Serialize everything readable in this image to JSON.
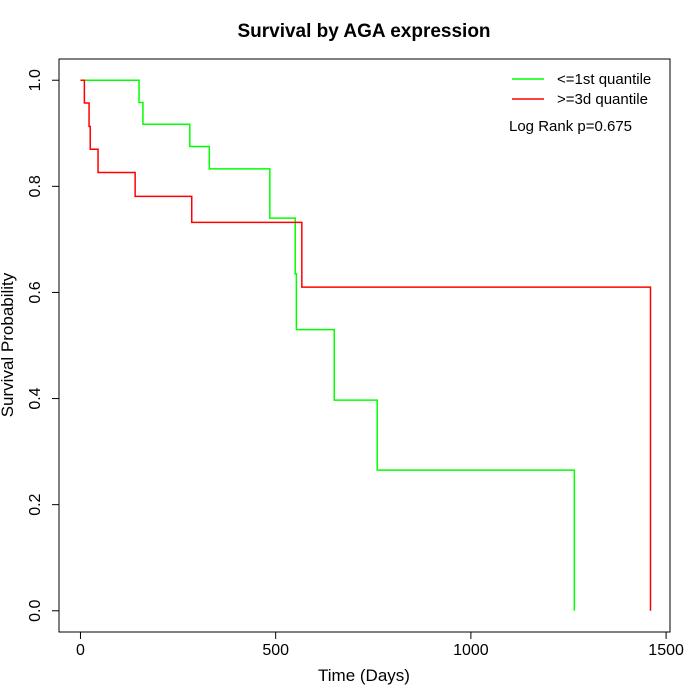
{
  "chart_data": {
    "type": "line",
    "step": true,
    "title": "Survival by AGA expression",
    "xlabel": "Time (Days)",
    "ylabel": "Survival Probability",
    "xlim": [
      -55,
      1510
    ],
    "ylim": [
      -0.04,
      1.04
    ],
    "xticks": [
      0,
      500,
      1000,
      1500
    ],
    "yticks": [
      0.0,
      0.2,
      0.4,
      0.6,
      0.8,
      1.0
    ],
    "xtick_labels": [
      "0",
      "500",
      "1000",
      "1500"
    ],
    "ytick_labels": [
      "0.0",
      "0.2",
      "0.4",
      "0.6",
      "0.8",
      "1.0"
    ],
    "grid": false,
    "legend_position": "top-right",
    "annotation": "Log Rank p=0.675",
    "series": [
      {
        "name": "<=1st quantile",
        "color": "#00ff00",
        "x": [
          0,
          130,
          150,
          160,
          280,
          330,
          485,
          550,
          553,
          556,
          650,
          760,
          1265
        ],
        "y": [
          1.0,
          1.0,
          0.958,
          0.917,
          0.875,
          0.833,
          0.74,
          0.635,
          0.53,
          0.53,
          0.397,
          0.265,
          0.0
        ]
      },
      {
        "name": ">=3d quantile",
        "color": "#ff0000",
        "x": [
          0,
          10,
          22,
          25,
          45,
          140,
          285,
          567,
          1460
        ],
        "y": [
          1.0,
          0.957,
          0.913,
          0.87,
          0.826,
          0.781,
          0.732,
          0.61,
          0.0
        ]
      }
    ]
  }
}
